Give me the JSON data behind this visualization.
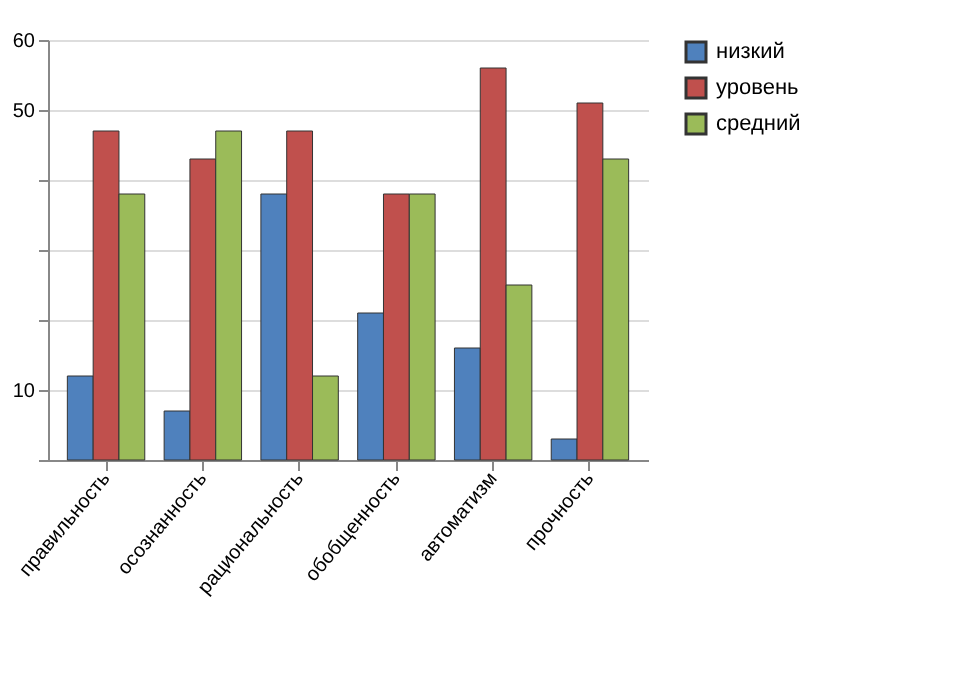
{
  "chart_data": {
    "type": "bar",
    "categories": [
      "правильность",
      "осознанность",
      "рациональность",
      "обобщенность",
      "автоматизм",
      "прочность"
    ],
    "series": [
      {
        "name": "низкий",
        "color": "#4f81bd",
        "values": [
          12,
          7,
          38,
          21,
          16,
          3
        ]
      },
      {
        "name": "уровень",
        "color": "#c0504d",
        "values": [
          47,
          43,
          47,
          38,
          56,
          51
        ]
      },
      {
        "name": "средний",
        "color": "#9bbb59",
        "values": [
          38,
          47,
          12,
          38,
          25,
          43
        ]
      }
    ],
    "ylim": [
      0,
      60
    ],
    "yticks": [
      {
        "value": 0,
        "label": null
      },
      {
        "value": 10,
        "label": "10"
      },
      {
        "value": 20,
        "label": null
      },
      {
        "value": 30,
        "label": null
      },
      {
        "value": 40,
        "label": null
      },
      {
        "value": 50,
        "label": "50"
      },
      {
        "value": 60,
        "label": "60"
      }
    ],
    "grid": "y",
    "legend": "right"
  }
}
